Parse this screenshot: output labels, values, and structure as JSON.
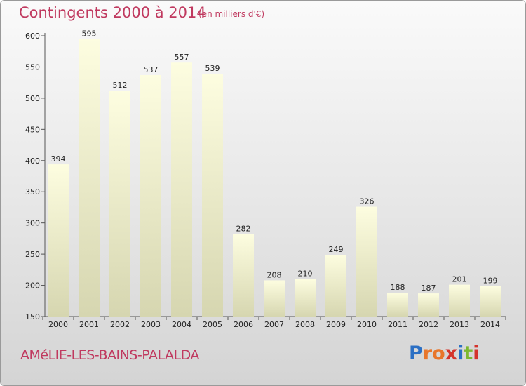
{
  "header": {
    "title": "Contingents 2000 à 2014",
    "subtitle": "(en milliers d'€)"
  },
  "footer": {
    "location": "AMéLIE-LES-BAINS-PALALDA",
    "logo_text": "Proxiti",
    "logo_colors": [
      "#2b6fc4",
      "#e8762b",
      "#e8762b",
      "#d4342c",
      "#2b6fc4",
      "#7cb82f",
      "#d4342c"
    ]
  },
  "colors": {
    "title": "#c0395f",
    "bar_top": "#fdfde0",
    "bar_bottom": "#d6d6b0",
    "axis": "#555555"
  },
  "chart_data": {
    "type": "bar",
    "title": "Contingents 2000 à 2014",
    "subtitle": "(en milliers d'€)",
    "categories": [
      "2000",
      "2001",
      "2002",
      "2003",
      "2004",
      "2005",
      "2006",
      "2007",
      "2008",
      "2009",
      "2010",
      "2011",
      "2012",
      "2013",
      "2014"
    ],
    "values": [
      394,
      595,
      512,
      537,
      557,
      539,
      282,
      208,
      210,
      249,
      326,
      188,
      187,
      201,
      199
    ],
    "ylim": [
      150,
      600
    ],
    "yticks": [
      150,
      200,
      250,
      300,
      350,
      400,
      450,
      500,
      550,
      600
    ],
    "xlabel": "",
    "ylabel": "",
    "grid": false,
    "legend": "none"
  }
}
